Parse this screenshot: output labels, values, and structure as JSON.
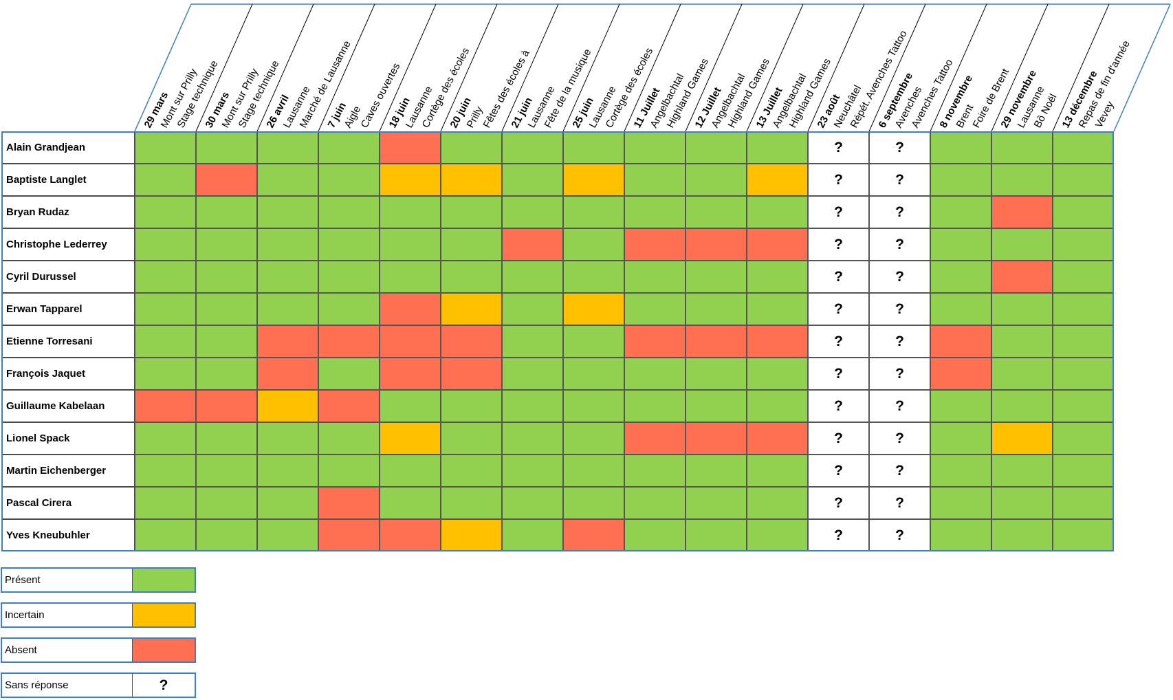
{
  "colors": {
    "present": "#92d050",
    "uncertain": "#ffc000",
    "absent": "#ff7052",
    "unknown": "#ffffff",
    "frame": "#3b7fc4"
  },
  "events": [
    {
      "date": "29 mars",
      "place": "Mont sur Prilly",
      "name": "Stage technique"
    },
    {
      "date": "30 mars",
      "place": "Mont sur Prilly",
      "name": "Stage technique"
    },
    {
      "date": "26 avril",
      "place": "Lausanne",
      "name": "Marché de Lausanne"
    },
    {
      "date": "7 juin",
      "place": "Aigle",
      "name": "Caves ouvertes"
    },
    {
      "date": "18 juin",
      "place": "Lausanne",
      "name": "Cortège des écoles"
    },
    {
      "date": "20 juin",
      "place": "Prilly",
      "name": "Fêtes des écoles à"
    },
    {
      "date": "21 juin",
      "place": "Lausanne",
      "name": "Fête de la musique"
    },
    {
      "date": "25 juin",
      "place": "Lausanne",
      "name": "Cortège des écoles"
    },
    {
      "date": "11 Juillet",
      "place": "Angelbachtal",
      "name": "Highland Games"
    },
    {
      "date": "12 Juillet",
      "place": "Angelbachtal",
      "name": "Highland Games"
    },
    {
      "date": "13 Juillet",
      "place": "Angelbachtal",
      "name": "Highland Games"
    },
    {
      "date": "23 août",
      "place": "Neuchâtel",
      "name": "Répét. Avenches Tattoo"
    },
    {
      "date": "6 septembre",
      "place": "Avenches",
      "name": "Avenches Tattoo"
    },
    {
      "date": "8 novembre",
      "place": "Brent",
      "name": "Foire de Brent"
    },
    {
      "date": "29 novembre",
      "place": "Lausanne",
      "name": "Bô Noël"
    },
    {
      "date": "13 décembre",
      "place": "Repas de fin d'année",
      "name": "Vevey"
    }
  ],
  "members": [
    {
      "name": "Alain Grandjean",
      "status": [
        "P",
        "P",
        "P",
        "P",
        "A",
        "P",
        "P",
        "P",
        "P",
        "P",
        "P",
        "?",
        "?",
        "P",
        "P",
        "P"
      ]
    },
    {
      "name": "Baptiste Langlet",
      "status": [
        "P",
        "A",
        "P",
        "P",
        "U",
        "U",
        "P",
        "U",
        "P",
        "P",
        "U",
        "?",
        "?",
        "P",
        "P",
        "P"
      ]
    },
    {
      "name": "Bryan Rudaz",
      "status": [
        "P",
        "P",
        "P",
        "P",
        "P",
        "P",
        "P",
        "P",
        "P",
        "P",
        "P",
        "?",
        "?",
        "P",
        "A",
        "P"
      ]
    },
    {
      "name": "Christophe Lederrey",
      "status": [
        "P",
        "P",
        "P",
        "P",
        "P",
        "P",
        "A",
        "P",
        "A",
        "A",
        "A",
        "?",
        "?",
        "P",
        "P",
        "P"
      ]
    },
    {
      "name": "Cyril Durussel",
      "status": [
        "P",
        "P",
        "P",
        "P",
        "P",
        "P",
        "P",
        "P",
        "P",
        "P",
        "P",
        "?",
        "?",
        "P",
        "A",
        "P"
      ]
    },
    {
      "name": "Erwan Tapparel",
      "status": [
        "P",
        "P",
        "P",
        "P",
        "A",
        "U",
        "P",
        "U",
        "P",
        "P",
        "P",
        "?",
        "?",
        "P",
        "P",
        "P"
      ]
    },
    {
      "name": "Etienne Torresani",
      "status": [
        "P",
        "P",
        "A",
        "A",
        "A",
        "A",
        "P",
        "P",
        "A",
        "A",
        "A",
        "?",
        "?",
        "A",
        "P",
        "P"
      ]
    },
    {
      "name": "François Jaquet",
      "status": [
        "P",
        "P",
        "A",
        "P",
        "A",
        "A",
        "P",
        "P",
        "P",
        "P",
        "P",
        "?",
        "?",
        "A",
        "P",
        "P"
      ]
    },
    {
      "name": "Guillaume Kabelaan",
      "status": [
        "A",
        "A",
        "U",
        "A",
        "P",
        "P",
        "P",
        "P",
        "P",
        "P",
        "P",
        "?",
        "?",
        "P",
        "P",
        "P"
      ]
    },
    {
      "name": "Lionel Spack",
      "status": [
        "P",
        "P",
        "P",
        "P",
        "U",
        "P",
        "P",
        "P",
        "A",
        "A",
        "A",
        "?",
        "?",
        "P",
        "U",
        "P"
      ]
    },
    {
      "name": "Martin Eichenberger",
      "status": [
        "P",
        "P",
        "P",
        "P",
        "P",
        "P",
        "P",
        "P",
        "P",
        "P",
        "P",
        "?",
        "?",
        "P",
        "P",
        "P"
      ]
    },
    {
      "name": "Pascal Cirera",
      "status": [
        "P",
        "P",
        "P",
        "A",
        "P",
        "P",
        "P",
        "P",
        "P",
        "P",
        "P",
        "?",
        "?",
        "P",
        "P",
        "P"
      ]
    },
    {
      "name": "Yves Kneubuhler",
      "status": [
        "P",
        "P",
        "P",
        "A",
        "A",
        "U",
        "P",
        "A",
        "P",
        "P",
        "P",
        "?",
        "?",
        "P",
        "P",
        "P"
      ]
    }
  ],
  "unknown_mark": "?",
  "legend": [
    {
      "label": "Présent",
      "status": "P"
    },
    {
      "label": "Incertain",
      "status": "U"
    },
    {
      "label": "Absent",
      "status": "A"
    },
    {
      "label": "Sans réponse",
      "status": "?",
      "mark": "?"
    }
  ]
}
